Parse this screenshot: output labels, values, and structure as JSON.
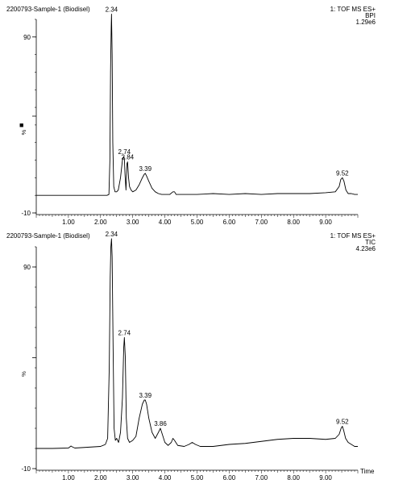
{
  "page": {
    "marker_glyph": "■"
  },
  "chart_data": [
    {
      "type": "line",
      "sample_label": "2200793-Sample-1 (Biodisel)",
      "detector": "1: TOF MS ES+",
      "trace_type": "BPI",
      "intensity": "1.29e6",
      "ylabel": "%",
      "xlabel": "",
      "xlim": [
        0,
        10
      ],
      "ylim": [
        -10,
        100
      ],
      "x_ticks": [
        1,
        2,
        3,
        4,
        5,
        6,
        7,
        8,
        9
      ],
      "x_tick_labels": [
        "1.00",
        "2.00",
        "3.00",
        "4.00",
        "5.00",
        "6.00",
        "7.00",
        "8.00",
        "9.00"
      ],
      "y_ticks": [
        -10,
        90
      ],
      "y_tick_labels": [
        "-10",
        "90"
      ],
      "series": [
        {
          "x": [
            0.0,
            0.5,
            1.0,
            1.5,
            2.0,
            2.2,
            2.26,
            2.29,
            2.31,
            2.33,
            2.34,
            2.36,
            2.38,
            2.41,
            2.45,
            2.5,
            2.55,
            2.62,
            2.68,
            2.72,
            2.74,
            2.76,
            2.79,
            2.82,
            2.84,
            2.87,
            2.9,
            2.95,
            3.0,
            3.1,
            3.2,
            3.3,
            3.36,
            3.39,
            3.43,
            3.5,
            3.6,
            3.7,
            3.8,
            3.9,
            4.0,
            4.15,
            4.25,
            4.3,
            4.35,
            4.45,
            4.6,
            5.0,
            5.5,
            6.0,
            6.5,
            7.0,
            7.5,
            8.0,
            8.5,
            9.0,
            9.3,
            9.42,
            9.47,
            9.52,
            9.57,
            9.63,
            9.7,
            9.8,
            9.9,
            10.0
          ],
          "y": [
            0,
            0,
            0,
            0,
            0,
            0,
            0.5,
            20,
            70,
            95,
            103,
            80,
            30,
            5,
            2,
            2,
            3,
            10,
            20,
            22,
            21,
            12,
            3,
            18,
            19,
            10,
            5,
            3,
            2,
            3,
            6,
            10,
            12,
            12.5,
            11,
            8,
            4,
            2,
            1,
            0.5,
            0.5,
            0.5,
            2,
            2,
            0.5,
            0.5,
            0.5,
            0.5,
            1,
            0.5,
            1,
            0.5,
            1,
            1,
            1,
            1.5,
            2,
            5,
            9,
            10,
            8,
            3,
            1,
            1,
            0.5,
            0.5
          ]
        }
      ],
      "annotations": [
        {
          "x": 2.34,
          "y": 103,
          "text": "2.34"
        },
        {
          "x": 2.74,
          "y": 22,
          "text": "2.74"
        },
        {
          "x": 2.84,
          "y": 19,
          "text": "2.84"
        },
        {
          "x": 3.39,
          "y": 12.5,
          "text": "3.39"
        },
        {
          "x": 9.52,
          "y": 10,
          "text": "9.52"
        }
      ]
    },
    {
      "type": "line",
      "sample_label": "2200793-Sample-1 (Biodisel)",
      "detector": "1: TOF MS ES+",
      "trace_type": "TIC",
      "intensity": "4.23e6",
      "ylabel": "%",
      "xlabel": "Time",
      "xlim": [
        0,
        10
      ],
      "ylim": [
        -10,
        100
      ],
      "x_ticks": [
        1,
        2,
        3,
        4,
        5,
        6,
        7,
        8,
        9
      ],
      "x_tick_labels": [
        "1.00",
        "2.00",
        "3.00",
        "4.00",
        "5.00",
        "6.00",
        "7.00",
        "8.00",
        "9.00"
      ],
      "y_ticks": [
        -10,
        90
      ],
      "y_tick_labels": [
        "-10",
        "90"
      ],
      "series": [
        {
          "x": [
            0.0,
            0.5,
            1.0,
            1.08,
            1.12,
            1.2,
            1.5,
            2.0,
            2.15,
            2.22,
            2.27,
            2.3,
            2.32,
            2.34,
            2.36,
            2.39,
            2.42,
            2.46,
            2.5,
            2.56,
            2.62,
            2.68,
            2.72,
            2.74,
            2.77,
            2.8,
            2.84,
            2.9,
            3.0,
            3.1,
            3.2,
            3.3,
            3.36,
            3.39,
            3.43,
            3.5,
            3.6,
            3.7,
            3.8,
            3.86,
            3.9,
            4.0,
            4.1,
            4.2,
            4.25,
            4.3,
            4.4,
            4.6,
            4.75,
            4.85,
            4.95,
            5.1,
            5.5,
            6.0,
            6.5,
            7.0,
            7.5,
            8.0,
            8.5,
            9.0,
            9.3,
            9.42,
            9.48,
            9.52,
            9.56,
            9.62,
            9.7,
            9.8,
            9.9,
            10.0
          ],
          "y": [
            0,
            0,
            0.2,
            1.2,
            0.8,
            0.2,
            0.5,
            1,
            2,
            5,
            40,
            85,
            100,
            104,
            95,
            50,
            10,
            4,
            5,
            3,
            8,
            25,
            50,
            55,
            45,
            15,
            5,
            3,
            4,
            6,
            15,
            22,
            24,
            24,
            22,
            15,
            8,
            5,
            8,
            10,
            8,
            3,
            1.5,
            3,
            5,
            4,
            1.5,
            1,
            2,
            3,
            2,
            1,
            1,
            2,
            2.5,
            3.5,
            4.5,
            5,
            5,
            4.5,
            5,
            7,
            10,
            11,
            9,
            5,
            3,
            2,
            1,
            1
          ]
        }
      ],
      "annotations": [
        {
          "x": 2.34,
          "y": 104,
          "text": "2.34"
        },
        {
          "x": 2.74,
          "y": 55,
          "text": "2.74"
        },
        {
          "x": 3.39,
          "y": 24,
          "text": "3.39"
        },
        {
          "x": 3.86,
          "y": 10,
          "text": "3.86"
        },
        {
          "x": 9.52,
          "y": 11,
          "text": "9.52"
        }
      ]
    }
  ]
}
